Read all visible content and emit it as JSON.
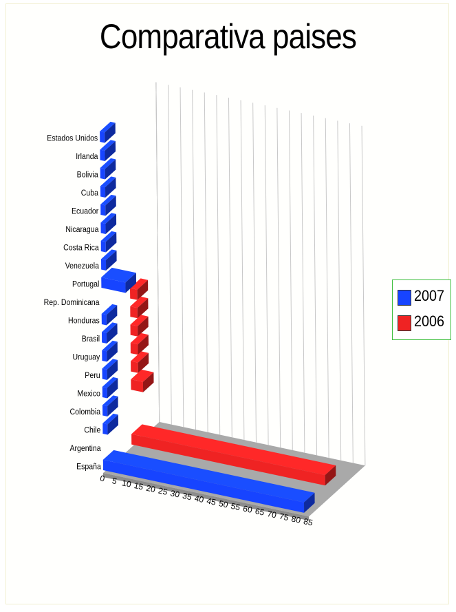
{
  "chart_data": {
    "type": "bar",
    "orientation": "horizontal",
    "style": "3d",
    "title": "Comparativa paises",
    "categories": [
      "España",
      "Argentina",
      "Chile",
      "Colombia",
      "Mexico",
      "Peru",
      "Uruguay",
      "Brasil",
      "Honduras",
      "Rep. Dominicana",
      "Portugal",
      "Venezuela",
      "Costa Rica",
      "Nicaragua",
      "Ecuador",
      "Cuba",
      "Bolivia",
      "Irlanda",
      "Estados Unidos"
    ],
    "series": [
      {
        "name": "2007",
        "color": "#1744ff",
        "values": [
          83,
          0,
          2,
          2,
          2,
          2,
          2,
          2,
          2,
          0,
          10,
          2,
          2,
          2,
          2,
          2,
          2,
          2,
          2
        ]
      },
      {
        "name": "2006",
        "color": "#ef2323",
        "values": [
          80,
          0,
          0,
          5,
          3,
          3,
          3,
          3,
          3,
          0,
          0,
          0,
          0,
          0,
          0,
          0,
          0,
          0,
          0
        ]
      }
    ],
    "x_ticks": [
      "0",
      "5",
      "10",
      "15",
      "20",
      "25",
      "30",
      "35",
      "40",
      "45",
      "50",
      "55",
      "60",
      "65",
      "70",
      "75",
      "80",
      "85"
    ],
    "xlim": [
      0,
      85
    ],
    "grid": true,
    "legend_position": "right"
  }
}
